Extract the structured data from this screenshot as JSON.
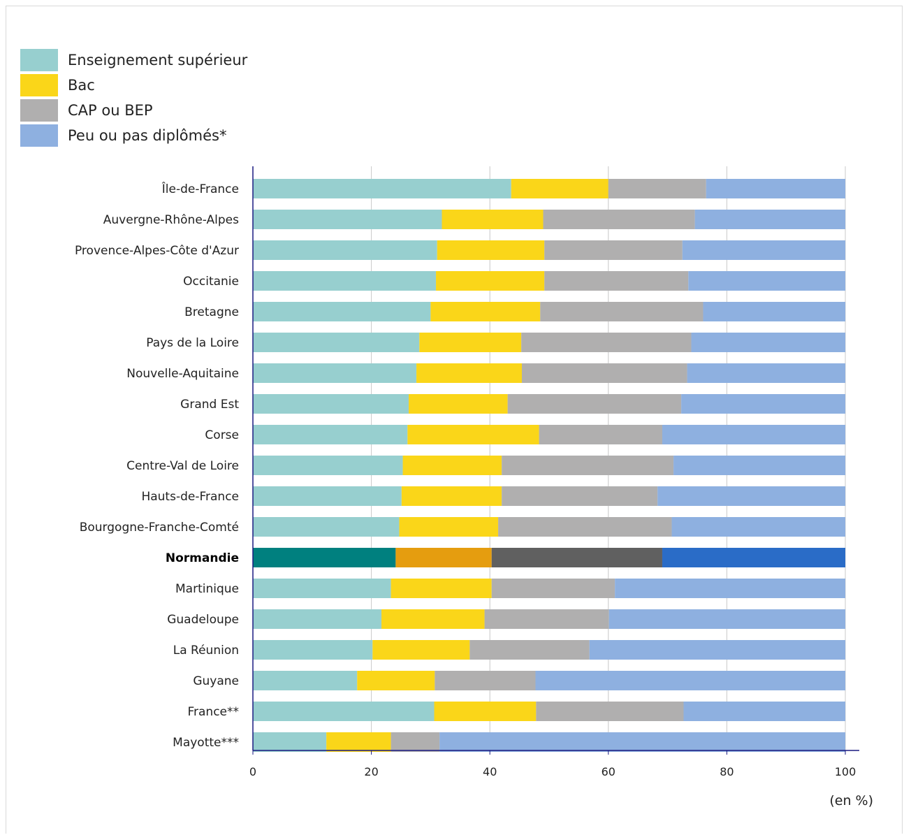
{
  "colors": {
    "normal": [
      "#97cfcf",
      "#fad619",
      "#b0afaf",
      "#8eb0e0"
    ],
    "highlight": [
      "#00807f",
      "#e59d0f",
      "#606060",
      "#2a6cc7"
    ]
  },
  "chart_data": {
    "type": "bar",
    "orientation": "horizontal",
    "stacked": true,
    "categories": [
      "Île-de-France",
      "Auvergne-Rhône-Alpes",
      "Provence-Alpes-Côte d'Azur",
      "Occitanie",
      "Bretagne",
      "Pays de la Loire",
      "Nouvelle-Aquitaine",
      "Grand Est",
      "Corse",
      "Centre-Val de Loire",
      "Hauts-de-France",
      "Bourgogne-Franche-Comté",
      "Normandie",
      "Martinique",
      "Guadeloupe",
      "La Réunion",
      "Guyane",
      "France**",
      "Mayotte***"
    ],
    "highlight_category": "Normandie",
    "series": [
      {
        "name": "Enseignement supérieur",
        "values": [
          43.6,
          31.9,
          31.1,
          30.9,
          30.0,
          28.1,
          27.6,
          26.3,
          26.1,
          25.3,
          25.1,
          24.7,
          24.1,
          23.3,
          21.7,
          20.2,
          17.6,
          30.6,
          12.4
        ]
      },
      {
        "name": "Bac",
        "values": [
          16.4,
          17.1,
          18.1,
          18.3,
          18.5,
          17.2,
          17.8,
          16.7,
          22.2,
          16.7,
          16.9,
          16.7,
          16.2,
          17.0,
          17.4,
          16.4,
          13.1,
          17.2,
          10.9
        ]
      },
      {
        "name": "CAP ou BEP",
        "values": [
          16.5,
          25.6,
          23.3,
          24.3,
          27.5,
          28.7,
          27.9,
          29.3,
          20.8,
          29.0,
          26.3,
          29.3,
          28.8,
          20.8,
          21.0,
          20.2,
          17.0,
          24.9,
          8.2
        ]
      },
      {
        "name": "Peu ou pas diplômés*",
        "values": [
          23.5,
          25.4,
          27.5,
          26.5,
          24.0,
          26.0,
          26.7,
          27.7,
          30.9,
          29.0,
          31.7,
          29.3,
          30.9,
          38.9,
          39.9,
          43.2,
          52.3,
          27.3,
          68.5
        ]
      }
    ],
    "xlim": [
      0,
      100
    ],
    "xticks": [
      "0",
      "20",
      "40",
      "60",
      "80",
      "100"
    ],
    "xlabel": "(en %)",
    "legend": "top-left",
    "grid": true
  }
}
